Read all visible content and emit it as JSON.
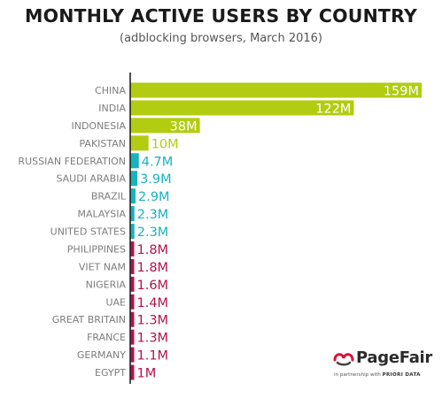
{
  "chart_data": {
    "type": "bar",
    "orientation": "horizontal",
    "title": "MONTHLY ACTIVE USERS BY COUNTRY",
    "subtitle": "(adblocking browsers, March 2016)",
    "categories": [
      "CHINA",
      "INDIA",
      "INDONESIA",
      "PAKISTAN",
      "RUSSIAN FEDERATION",
      "SAUDI ARABIA",
      "BRAZIL",
      "MALAYSIA",
      "UNITED STATES",
      "PHILIPPINES",
      "VIET NAM",
      "NIGERIA",
      "UAE",
      "GREAT BRITAIN",
      "FRANCE",
      "GERMANY",
      "EGYPT"
    ],
    "values": [
      159,
      122,
      38,
      10,
      4.7,
      3.9,
      2.9,
      2.3,
      2.3,
      1.8,
      1.8,
      1.6,
      1.4,
      1.3,
      1.3,
      1.1,
      1
    ],
    "value_labels": [
      "159M",
      "122M",
      "38M",
      "10M",
      "4.7M",
      "3.9M",
      "2.9M",
      "2.3M",
      "2.3M",
      "1.8M",
      "1.8M",
      "1.6M",
      "1.4M",
      "1.3M",
      "1.3M",
      "1.1M",
      "1M"
    ],
    "unit": "M",
    "xlim": [
      0,
      159
    ],
    "grid": false,
    "colors": {
      "green": "#b2cc12",
      "teal": "#18b3be",
      "crimson": "#b5124e",
      "axis": "#222222",
      "label": "#7d7d7d"
    },
    "color_groups": [
      "green",
      "green",
      "green",
      "green",
      "teal",
      "teal",
      "teal",
      "teal",
      "teal",
      "crimson",
      "crimson",
      "crimson",
      "crimson",
      "crimson",
      "crimson",
      "crimson",
      "crimson"
    ]
  },
  "branding": {
    "logo_icon": "pagefair-logo-icon",
    "logo_text": "PageFair",
    "partner_prefix": "in partnership with",
    "partner_name": "PRIORI DATA",
    "accent": "#d6123c"
  }
}
